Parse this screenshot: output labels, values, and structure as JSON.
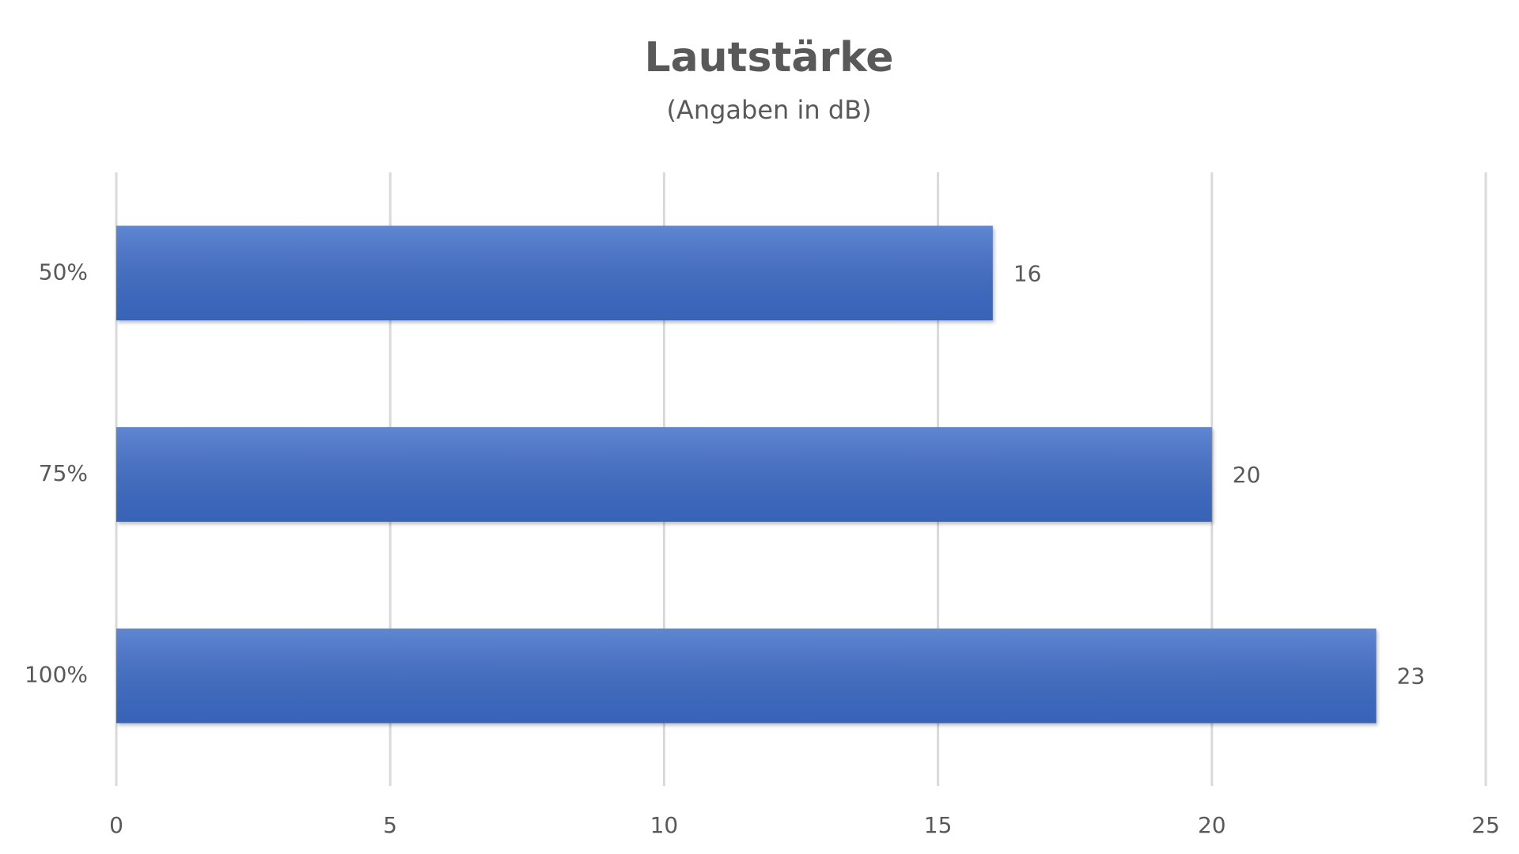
{
  "chart_data": {
    "type": "bar",
    "orientation": "horizontal",
    "title": "Lautstärke",
    "subtitle": "(Angaben in dB)",
    "categories": [
      "50%",
      "75%",
      "100%"
    ],
    "values": [
      16,
      20,
      23
    ],
    "color": "#3c6cc8",
    "xlim": [
      0,
      25
    ],
    "xticks": [
      0,
      5,
      10,
      15,
      20,
      25
    ],
    "grid": true
  }
}
